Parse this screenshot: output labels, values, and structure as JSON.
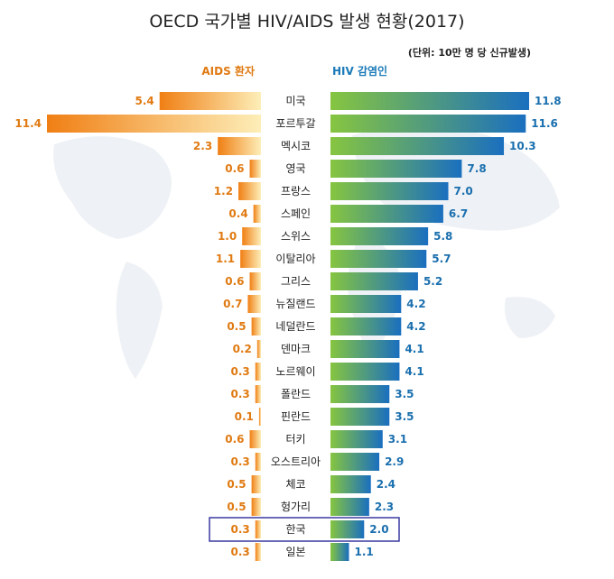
{
  "chart_data": {
    "type": "bar",
    "title": "OECD 국가별 HIV/AIDS 발생 현황(2017)",
    "unit_note": "(단위: 10만 명 당 신규발생)",
    "legend": {
      "aids": "AIDS 환자",
      "hiv": "HIV 감염인"
    },
    "categories": [
      "미국",
      "포르투갈",
      "멕시코",
      "영국",
      "프랑스",
      "스페인",
      "스위스",
      "이탈리아",
      "그리스",
      "뉴질랜드",
      "네덜란드",
      "덴마크",
      "노르웨이",
      "폴란드",
      "핀란드",
      "터키",
      "오스트리아",
      "체코",
      "헝가리",
      "한국",
      "일본"
    ],
    "series": [
      {
        "name": "AIDS 환자",
        "values": [
          5.4,
          11.4,
          2.3,
          0.6,
          1.2,
          0.4,
          1.0,
          1.1,
          0.6,
          0.7,
          0.5,
          0.2,
          0.3,
          0.3,
          0.1,
          0.6,
          0.3,
          0.5,
          0.5,
          0.3,
          0.3
        ]
      },
      {
        "name": "HIV 감염인",
        "values": [
          11.8,
          11.6,
          10.3,
          7.8,
          7.0,
          6.7,
          5.8,
          5.7,
          5.2,
          4.2,
          4.2,
          4.1,
          4.1,
          3.5,
          3.5,
          3.1,
          2.9,
          2.4,
          2.3,
          2.0,
          1.1
        ]
      }
    ],
    "highlight": "한국",
    "colors": {
      "aids": "#f08a1c",
      "aids_light": "#fde3a8",
      "hiv": "#1d78c0",
      "hiv_light": "#7cc242",
      "highlight_box": "#3a3aa0"
    }
  }
}
